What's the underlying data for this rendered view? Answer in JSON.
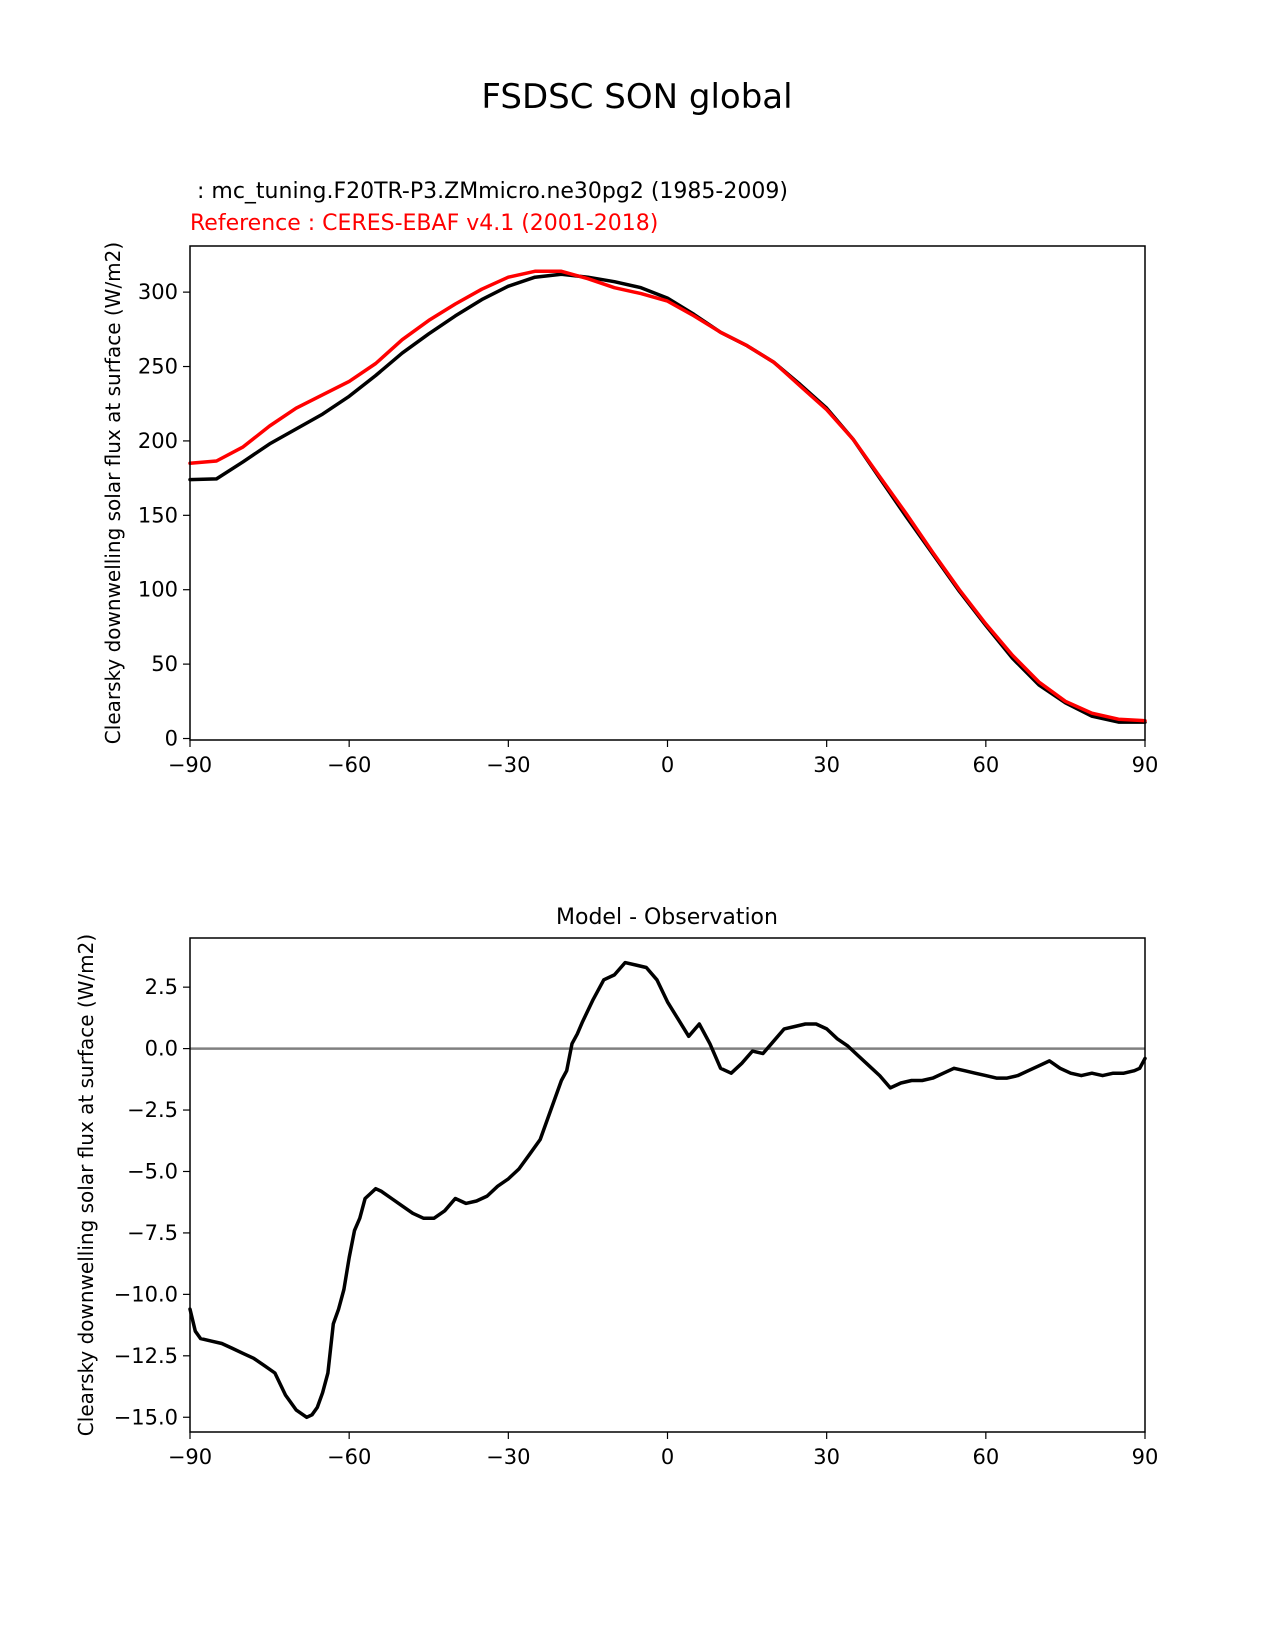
{
  "title": "FSDSC SON global",
  "chart_data": [
    {
      "type": "line",
      "test_label": " : mc_tuning.F20TR-P3.ZMmicro.ne30pg2 (1985-2009)",
      "ref_label": "Reference : CERES-EBAF v4.1 (2001-2018)",
      "ylabel": "Clearsky downwelling solar flux at surface (W/m2)",
      "xlabel": "",
      "xlim": [
        -90,
        90
      ],
      "ylim": [
        -1,
        331
      ],
      "xticks": [
        -90,
        -60,
        -30,
        0,
        30,
        60,
        90
      ],
      "xtick_labels": [
        "−90",
        "−60",
        "−30",
        "0",
        "30",
        "60",
        "90"
      ],
      "yticks": [
        0,
        50,
        100,
        150,
        200,
        250,
        300
      ],
      "ytick_labels": [
        "0",
        "50",
        "100",
        "150",
        "200",
        "250",
        "300"
      ],
      "x": [
        -90,
        -85,
        -80,
        -75,
        -70,
        -65,
        -60,
        -55,
        -50,
        -45,
        -40,
        -35,
        -30,
        -25,
        -20,
        -15,
        -10,
        -5,
        0,
        5,
        10,
        15,
        20,
        25,
        30,
        35,
        40,
        45,
        50,
        55,
        60,
        65,
        70,
        75,
        80,
        85,
        90
      ],
      "series": [
        {
          "color": "#000000",
          "values": [
            174,
            174.5,
            186,
            198,
            208,
            218,
            230,
            244,
            259,
            272,
            284,
            295,
            304,
            310,
            312,
            310,
            307,
            303,
            296,
            285,
            273,
            264,
            253,
            238,
            222,
            201,
            175,
            149,
            124,
            99,
            76,
            54,
            36,
            24,
            15,
            11,
            11
          ]
        },
        {
          "color": "#ff0000",
          "values": [
            185,
            186.5,
            196,
            210,
            222,
            231,
            240,
            252,
            268,
            281,
            292,
            302,
            310,
            314,
            314,
            309,
            303,
            299,
            294,
            284,
            273,
            264,
            253,
            237,
            221,
            201,
            176,
            151,
            125,
            100,
            77,
            56,
            38,
            25,
            17,
            13,
            12
          ]
        }
      ]
    },
    {
      "type": "line",
      "title": "Model - Observation",
      "ylabel": "Clearsky downwelling solar flux at surface (W/m2)",
      "xlabel": "",
      "xlim": [
        -90,
        90
      ],
      "ylim": [
        -15.6,
        4.5
      ],
      "xticks": [
        -90,
        -60,
        -30,
        0,
        30,
        60,
        90
      ],
      "xtick_labels": [
        "−90",
        "−60",
        "−30",
        "0",
        "30",
        "60",
        "90"
      ],
      "yticks": [
        2.5,
        0,
        -2.5,
        -5,
        -7.5,
        -10,
        -12.5,
        -15
      ],
      "ytick_labels": [
        "2.5",
        "0.0",
        "−2.5",
        "−5.0",
        "−7.5",
        "−10.0",
        "−12.5",
        "−15.0"
      ],
      "zero_line_color": "#808080",
      "x": [
        -90,
        -89,
        -88,
        -86,
        -84,
        -82,
        -80,
        -78,
        -76,
        -74,
        -72,
        -70,
        -68,
        -67,
        -66,
        -65,
        -64,
        -63,
        -62,
        -61,
        -60,
        -59,
        -58,
        -57,
        -56,
        -55,
        -54,
        -52,
        -50,
        -48,
        -46,
        -44,
        -42,
        -40,
        -38,
        -36,
        -34,
        -32,
        -30,
        -28,
        -26,
        -24,
        -22,
        -20,
        -19,
        -18,
        -17,
        -16,
        -14,
        -12,
        -10,
        -8,
        -6,
        -4,
        -2,
        0,
        2,
        4,
        6,
        8,
        10,
        12,
        14,
        16,
        18,
        20,
        22,
        24,
        26,
        28,
        30,
        32,
        34,
        36,
        38,
        40,
        42,
        44,
        46,
        48,
        50,
        52,
        54,
        56,
        58,
        60,
        62,
        64,
        66,
        68,
        70,
        72,
        74,
        76,
        78,
        80,
        82,
        84,
        86,
        88,
        89,
        90
      ],
      "series": [
        {
          "color": "#000000",
          "values": [
            -10.6,
            -11.5,
            -11.8,
            -11.9,
            -12.0,
            -12.2,
            -12.4,
            -12.6,
            -12.9,
            -13.2,
            -14.1,
            -14.7,
            -15.0,
            -14.9,
            -14.6,
            -14.0,
            -13.2,
            -11.2,
            -10.6,
            -9.8,
            -8.5,
            -7.4,
            -6.9,
            -6.1,
            -5.9,
            -5.7,
            -5.8,
            -6.1,
            -6.4,
            -6.7,
            -6.9,
            -6.9,
            -6.6,
            -6.1,
            -6.3,
            -6.2,
            -6.0,
            -5.6,
            -5.3,
            -4.9,
            -4.3,
            -3.7,
            -2.5,
            -1.3,
            -0.9,
            0.2,
            0.6,
            1.1,
            2.0,
            2.8,
            3.0,
            3.5,
            3.4,
            3.3,
            2.8,
            1.9,
            1.2,
            0.5,
            1.0,
            0.2,
            -0.8,
            -1.0,
            -0.6,
            -0.1,
            -0.2,
            0.3,
            0.8,
            0.9,
            1.0,
            1.0,
            0.8,
            0.4,
            0.1,
            -0.3,
            -0.7,
            -1.1,
            -1.6,
            -1.4,
            -1.3,
            -1.3,
            -1.2,
            -1.0,
            -0.8,
            -0.9,
            -1.0,
            -1.1,
            -1.2,
            -1.2,
            -1.1,
            -0.9,
            -0.7,
            -0.5,
            -0.8,
            -1.0,
            -1.1,
            -1.0,
            -1.1,
            -1.0,
            -1.0,
            -0.9,
            -0.8,
            -0.4
          ]
        }
      ]
    }
  ]
}
